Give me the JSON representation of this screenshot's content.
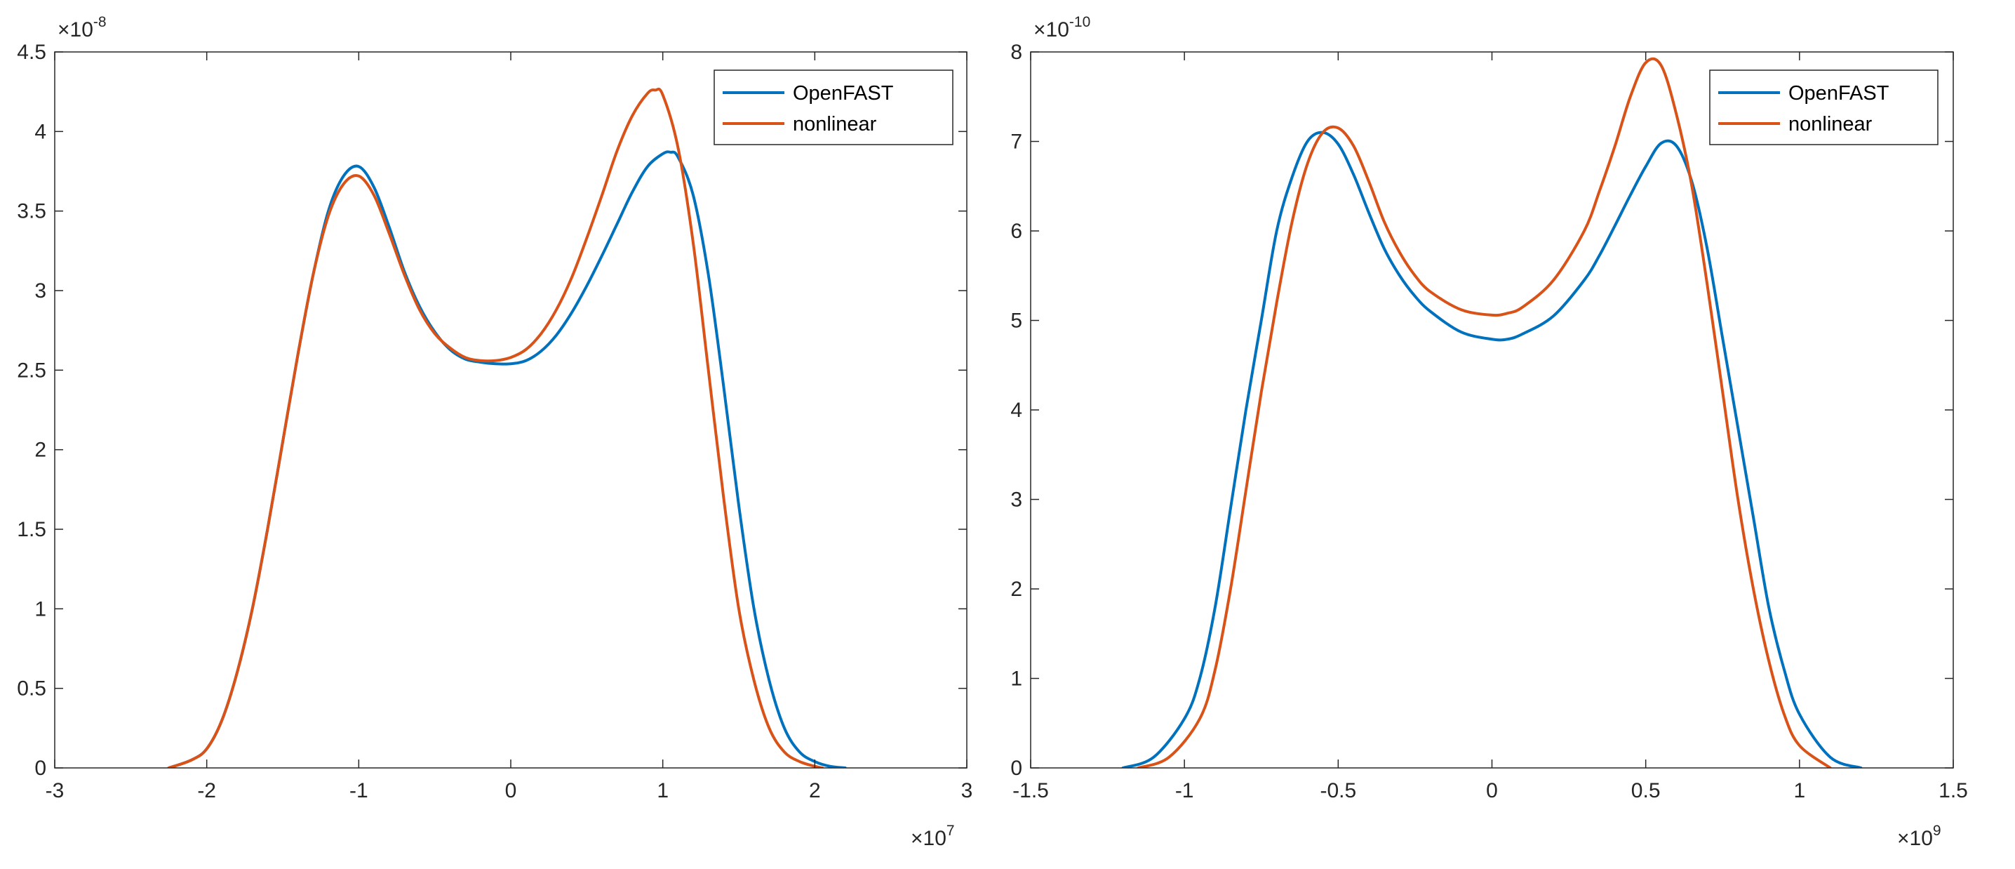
{
  "chart_data": [
    {
      "type": "line",
      "title": "",
      "xlabel": "",
      "ylabel": "",
      "xlim": [
        -3,
        3
      ],
      "ylim": [
        0,
        4.5
      ],
      "x_exponent": {
        "prefix": "×10",
        "power": "7"
      },
      "y_exponent": {
        "prefix": "×10",
        "power": "-8"
      },
      "xticks": [
        -3,
        -2,
        -1,
        0,
        1,
        2,
        3
      ],
      "xtick_labels": [
        "-3",
        "-2",
        "-1",
        "0",
        "1",
        "2",
        "3"
      ],
      "yticks": [
        0,
        0.5,
        1,
        1.5,
        2,
        2.5,
        3,
        3.5,
        4,
        4.5
      ],
      "ytick_labels": [
        "0",
        "0.5",
        "1",
        "1.5",
        "2",
        "2.5",
        "3",
        "3.5",
        "4",
        "4.5"
      ],
      "grid": false,
      "legend_position": "top-right",
      "series": [
        {
          "name": "OpenFAST",
          "color": "#0072BD",
          "x": [
            -2.25,
            -2.1,
            -2.0,
            -1.9,
            -1.8,
            -1.7,
            -1.6,
            -1.5,
            -1.4,
            -1.3,
            -1.2,
            -1.1,
            -1.0,
            -0.9,
            -0.8,
            -0.7,
            -0.6,
            -0.5,
            -0.4,
            -0.3,
            -0.2,
            -0.1,
            0.0,
            0.1,
            0.2,
            0.3,
            0.4,
            0.5,
            0.6,
            0.7,
            0.8,
            0.9,
            1.0,
            1.05,
            1.1,
            1.2,
            1.3,
            1.4,
            1.5,
            1.6,
            1.7,
            1.8,
            1.9,
            2.0,
            2.1,
            2.2
          ],
          "y": [
            0.0,
            0.05,
            0.12,
            0.3,
            0.6,
            1.0,
            1.5,
            2.05,
            2.6,
            3.1,
            3.5,
            3.72,
            3.78,
            3.65,
            3.4,
            3.12,
            2.9,
            2.74,
            2.63,
            2.57,
            2.55,
            2.54,
            2.54,
            2.56,
            2.62,
            2.72,
            2.86,
            3.03,
            3.22,
            3.42,
            3.62,
            3.78,
            3.86,
            3.87,
            3.84,
            3.6,
            3.1,
            2.4,
            1.65,
            1.0,
            0.55,
            0.25,
            0.1,
            0.04,
            0.01,
            0.0
          ]
        },
        {
          "name": "nonlinear",
          "color": "#D95319",
          "x": [
            -2.25,
            -2.1,
            -2.0,
            -1.9,
            -1.8,
            -1.7,
            -1.6,
            -1.5,
            -1.4,
            -1.3,
            -1.2,
            -1.1,
            -1.0,
            -0.9,
            -0.8,
            -0.7,
            -0.6,
            -0.5,
            -0.4,
            -0.3,
            -0.2,
            -0.1,
            0.0,
            0.1,
            0.2,
            0.3,
            0.4,
            0.5,
            0.6,
            0.7,
            0.8,
            0.9,
            0.95,
            1.0,
            1.1,
            1.2,
            1.3,
            1.4,
            1.5,
            1.6,
            1.7,
            1.8,
            1.9,
            2.0,
            2.05
          ],
          "y": [
            0.0,
            0.05,
            0.12,
            0.3,
            0.6,
            1.0,
            1.5,
            2.05,
            2.6,
            3.1,
            3.47,
            3.67,
            3.72,
            3.6,
            3.36,
            3.1,
            2.88,
            2.73,
            2.64,
            2.58,
            2.56,
            2.56,
            2.58,
            2.63,
            2.73,
            2.88,
            3.08,
            3.33,
            3.6,
            3.88,
            4.1,
            4.24,
            4.26,
            4.23,
            3.9,
            3.3,
            2.5,
            1.7,
            1.0,
            0.55,
            0.25,
            0.1,
            0.04,
            0.01,
            0.0
          ]
        }
      ]
    },
    {
      "type": "line",
      "title": "",
      "xlabel": "",
      "ylabel": "",
      "xlim": [
        -1.5,
        1.5
      ],
      "ylim": [
        0,
        8
      ],
      "x_exponent": {
        "prefix": "×10",
        "power": "9"
      },
      "y_exponent": {
        "prefix": "×10",
        "power": "-10"
      },
      "xticks": [
        -1.5,
        -1,
        -0.5,
        0,
        0.5,
        1,
        1.5
      ],
      "xtick_labels": [
        "-1.5",
        "-1",
        "-0.5",
        "0",
        "0.5",
        "1",
        "1.5"
      ],
      "yticks": [
        0,
        1,
        2,
        3,
        4,
        5,
        6,
        7,
        8
      ],
      "ytick_labels": [
        "0",
        "1",
        "2",
        "3",
        "4",
        "5",
        "6",
        "7",
        "8"
      ],
      "grid": false,
      "legend_position": "top-right",
      "series": [
        {
          "name": "OpenFAST",
          "color": "#0072BD",
          "x": [
            -1.2,
            -1.1,
            -1.0,
            -0.95,
            -0.9,
            -0.85,
            -0.8,
            -0.75,
            -0.7,
            -0.65,
            -0.6,
            -0.55,
            -0.5,
            -0.45,
            -0.4,
            -0.35,
            -0.3,
            -0.25,
            -0.2,
            -0.1,
            0.0,
            0.05,
            0.1,
            0.2,
            0.3,
            0.35,
            0.4,
            0.45,
            0.5,
            0.55,
            0.6,
            0.65,
            0.7,
            0.75,
            0.8,
            0.85,
            0.9,
            0.95,
            1.0,
            1.1,
            1.2
          ],
          "y": [
            0.0,
            0.12,
            0.55,
            1.0,
            1.8,
            2.9,
            4.0,
            5.0,
            6.0,
            6.6,
            7.0,
            7.1,
            6.97,
            6.63,
            6.2,
            5.8,
            5.5,
            5.27,
            5.1,
            4.87,
            4.79,
            4.79,
            4.85,
            5.05,
            5.45,
            5.73,
            6.06,
            6.4,
            6.72,
            6.98,
            6.95,
            6.55,
            5.8,
            4.8,
            3.8,
            2.8,
            1.8,
            1.1,
            0.6,
            0.12,
            0.0
          ]
        },
        {
          "name": "nonlinear",
          "color": "#D95319",
          "x": [
            -1.15,
            -1.05,
            -0.95,
            -0.9,
            -0.85,
            -0.8,
            -0.75,
            -0.7,
            -0.65,
            -0.6,
            -0.55,
            -0.5,
            -0.45,
            -0.4,
            -0.35,
            -0.3,
            -0.25,
            -0.2,
            -0.1,
            0.0,
            0.05,
            0.1,
            0.2,
            0.3,
            0.35,
            0.4,
            0.45,
            0.5,
            0.55,
            0.6,
            0.65,
            0.7,
            0.75,
            0.8,
            0.85,
            0.9,
            0.95,
            1.0,
            1.1
          ],
          "y": [
            0.0,
            0.12,
            0.55,
            1.1,
            2.0,
            3.1,
            4.2,
            5.2,
            6.1,
            6.75,
            7.1,
            7.15,
            6.95,
            6.55,
            6.1,
            5.76,
            5.5,
            5.32,
            5.12,
            5.06,
            5.08,
            5.15,
            5.45,
            6.0,
            6.45,
            6.95,
            7.5,
            7.88,
            7.85,
            7.3,
            6.5,
            5.4,
            4.2,
            3.0,
            2.0,
            1.2,
            0.6,
            0.25,
            0.0
          ]
        }
      ]
    }
  ]
}
